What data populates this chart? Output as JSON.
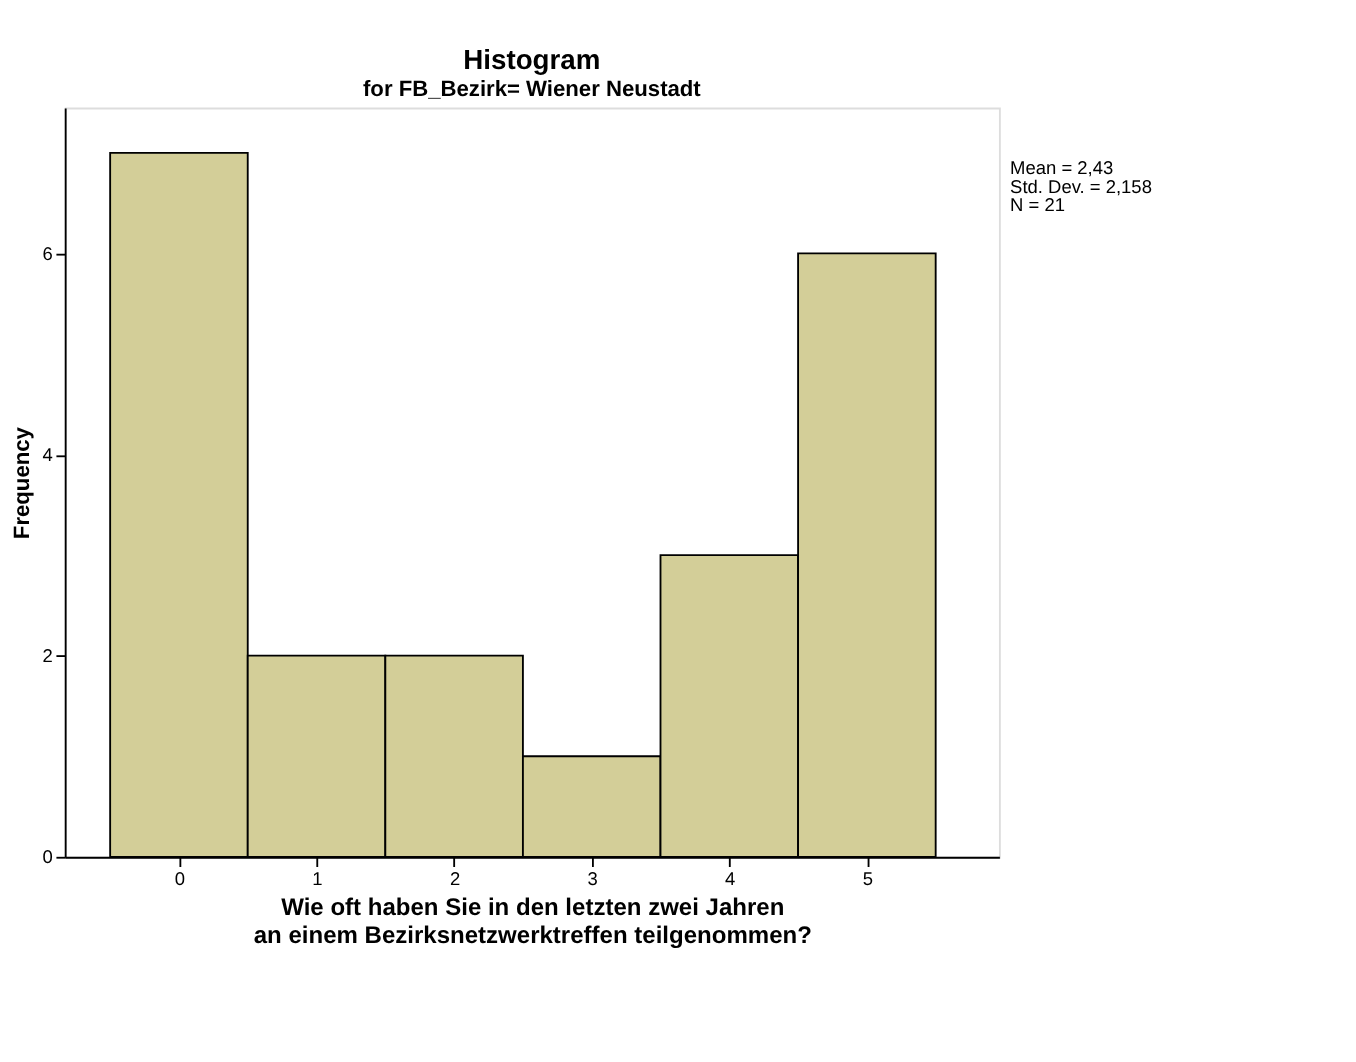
{
  "chart_data": {
    "type": "histogram",
    "title": "Histogram",
    "subtitle": "for FB_Bezirk= Wiener Neustadt",
    "xlabel": "Wie oft haben Sie in den letzten zwei Jahren an einem Bezirksnetzwerktreffen teilgenommen?",
    "ylabel": "Frequency",
    "bins": [
      -0.5,
      0.5,
      1.5,
      2.5,
      3.5,
      4.5,
      5.5
    ],
    "values": [
      7,
      2,
      2,
      1,
      3,
      6
    ],
    "color": "#d3ce98",
    "xlim": [
      -0.83,
      5.96
    ],
    "xticks": [
      0,
      1,
      2,
      3,
      4,
      5
    ],
    "ylim": [
      0,
      7.45
    ],
    "yticks": [
      0,
      2,
      4,
      6
    ],
    "grid": false,
    "annotations": [
      "Mean = 2,43",
      "Std. Dev. = 2,158",
      "N = 21"
    ]
  }
}
